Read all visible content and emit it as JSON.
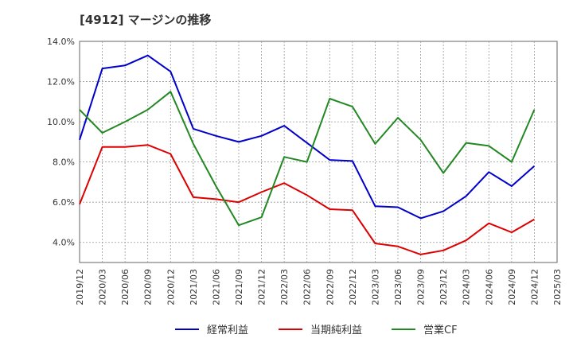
{
  "chart_data": {
    "type": "line",
    "title": "[4912]  マージンの推移",
    "x": [
      "2019/12",
      "2020/03",
      "2020/06",
      "2020/09",
      "2020/12",
      "2021/03",
      "2021/06",
      "2021/09",
      "2021/12",
      "2022/03",
      "2022/06",
      "2022/09",
      "2022/12",
      "2023/03",
      "2023/06",
      "2023/09",
      "2023/12",
      "2024/03",
      "2024/06",
      "2024/09",
      "2024/12",
      "2025/03"
    ],
    "ylim": [
      3.0,
      14.0
    ],
    "yticks": [
      4.0,
      6.0,
      8.0,
      10.0,
      12.0,
      14.0
    ],
    "ytick_labels": [
      "4.0%",
      "6.0%",
      "8.0%",
      "10.0%",
      "12.0%",
      "14.0%"
    ],
    "grid": true,
    "legend_position": "bottom",
    "series": [
      {
        "name": "経常利益",
        "color": "#0000cc",
        "values": [
          9.1,
          12.65,
          12.8,
          13.3,
          12.5,
          9.65,
          9.3,
          9.0,
          9.3,
          9.8,
          8.95,
          8.1,
          8.05,
          5.8,
          5.75,
          5.2,
          5.55,
          6.3,
          7.5,
          6.8,
          7.8,
          null
        ]
      },
      {
        "name": "当期純利益",
        "color": "#dd0000",
        "values": [
          5.9,
          8.75,
          8.75,
          8.85,
          8.4,
          6.25,
          6.15,
          6.0,
          6.5,
          6.95,
          6.35,
          5.65,
          5.6,
          3.95,
          3.8,
          3.4,
          3.6,
          4.1,
          4.95,
          4.5,
          5.15,
          null
        ]
      },
      {
        "name": "営業CF",
        "color": "#228822",
        "values": [
          10.6,
          9.45,
          10.0,
          10.6,
          11.5,
          8.9,
          6.8,
          4.85,
          5.25,
          8.25,
          8.0,
          11.15,
          10.75,
          8.9,
          10.2,
          9.1,
          7.45,
          8.95,
          8.8,
          8.0,
          10.6,
          null
        ]
      }
    ]
  }
}
